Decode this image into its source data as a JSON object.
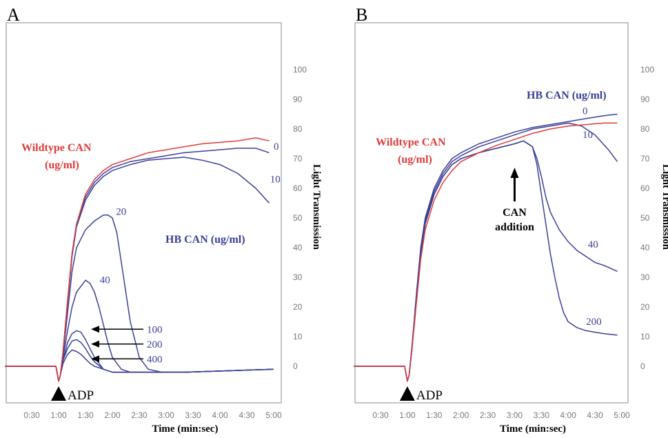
{
  "chart_data": [
    {
      "panel": "A",
      "type": "line",
      "xlabel": "Time (min:sec)",
      "ylabel": "Light Transmission",
      "x_ticks": [
        "0:30",
        "1:00",
        "1:30",
        "2:00",
        "2:30",
        "3:00",
        "3:30",
        "4:00",
        "4:30",
        "5:00"
      ],
      "x_tick_seconds": [
        30,
        60,
        90,
        120,
        150,
        180,
        210,
        240,
        270,
        300
      ],
      "y_ticks": [
        0,
        10,
        20,
        30,
        40,
        50,
        60,
        70,
        80,
        90,
        100
      ],
      "xlim": [
        0,
        310
      ],
      "ylim": [
        -12,
        112
      ],
      "adp_marker": {
        "label": "ADP",
        "x": 60
      },
      "annotations": {
        "wildtype": [
          "Wildtype CAN",
          "(ug/ml)"
        ],
        "hb": "HB CAN (ug/ml)"
      },
      "series": [
        {
          "label": "0",
          "group": "HB",
          "color": "#3a3f96",
          "x": [
            0,
            57,
            60,
            62,
            65,
            70,
            75,
            80,
            90,
            100,
            110,
            120,
            140,
            160,
            180,
            200,
            220,
            240,
            260,
            280,
            295
          ],
          "y": [
            0,
            0,
            -5,
            -3,
            5,
            22,
            38,
            48,
            57,
            62,
            65,
            67,
            69,
            70,
            71,
            72,
            72.5,
            73,
            73.5,
            73.5,
            72
          ]
        },
        {
          "label": "10",
          "group": "HB",
          "color": "#3a3f96",
          "x": [
            0,
            57,
            60,
            62,
            65,
            70,
            75,
            80,
            90,
            100,
            110,
            120,
            140,
            160,
            180,
            200,
            220,
            240,
            260,
            280,
            295
          ],
          "y": [
            0,
            0,
            -5,
            -3,
            5,
            21,
            37,
            47,
            56,
            61,
            64,
            66,
            68,
            69.5,
            70,
            70.5,
            69.5,
            68,
            65,
            60,
            55
          ]
        },
        {
          "label": "20",
          "group": "HB",
          "color": "#3a3f96",
          "x": [
            0,
            57,
            60,
            62,
            65,
            70,
            75,
            80,
            90,
            100,
            110,
            115,
            120,
            125,
            130,
            140,
            150,
            160,
            175,
            200,
            250,
            300
          ],
          "y": [
            0,
            0,
            -5,
            -3,
            4,
            18,
            32,
            40,
            46,
            49,
            51,
            51,
            50,
            45,
            35,
            15,
            3,
            -1,
            -2,
            -2,
            -1.5,
            -1
          ]
        },
        {
          "label": "40",
          "group": "HB",
          "color": "#3a3f96",
          "x": [
            0,
            57,
            60,
            62,
            65,
            70,
            75,
            80,
            85,
            90,
            95,
            100,
            105,
            110,
            115,
            120,
            130,
            140,
            160,
            200,
            250,
            300
          ],
          "y": [
            0,
            0,
            -5,
            -3,
            3,
            12,
            20,
            25,
            27,
            29,
            28,
            25,
            20,
            14,
            8,
            3,
            -1,
            -2,
            -2,
            -2,
            -1.5,
            -1
          ]
        },
        {
          "label": "100",
          "group": "HB",
          "color": "#3a3f96",
          "x": [
            0,
            57,
            60,
            62,
            65,
            70,
            75,
            80,
            85,
            90,
            95,
            100,
            110,
            120,
            140,
            160,
            200,
            250,
            300
          ],
          "y": [
            0,
            0,
            -5,
            -3,
            2,
            8,
            11,
            12,
            11.5,
            9,
            6,
            3,
            -1,
            -2,
            -2,
            -2,
            -2,
            -1.5,
            -1
          ]
        },
        {
          "label": "200",
          "group": "HB",
          "color": "#3a3f96",
          "x": [
            0,
            57,
            60,
            62,
            65,
            70,
            75,
            80,
            85,
            90,
            95,
            100,
            110,
            120,
            140,
            160,
            200,
            250,
            300
          ],
          "y": [
            0,
            0,
            -5,
            -3,
            2,
            6,
            8.5,
            9,
            8,
            6,
            3.5,
            1.5,
            -1,
            -2,
            -2,
            -2,
            -2,
            -1.5,
            -1
          ]
        },
        {
          "label": "400",
          "group": "HB",
          "color": "#3a3f96",
          "x": [
            0,
            57,
            60,
            62,
            65,
            70,
            75,
            80,
            85,
            90,
            95,
            100,
            110,
            120,
            140,
            160,
            200,
            250,
            300
          ],
          "y": [
            0,
            0,
            -5,
            -3,
            1,
            4,
            5.5,
            5,
            4,
            2.5,
            1,
            0,
            -1,
            -2,
            -2,
            -2,
            -2,
            -1.5,
            -1
          ]
        },
        {
          "label": "Wildtype",
          "group": "WT",
          "color": "#e03a3a",
          "x": [
            0,
            57,
            60,
            62,
            65,
            70,
            75,
            80,
            90,
            100,
            110,
            120,
            140,
            160,
            180,
            200,
            220,
            240,
            260,
            280,
            295
          ],
          "y": [
            0,
            0,
            -5,
            -3,
            5,
            22,
            38,
            48,
            58,
            63,
            66,
            68,
            70,
            72,
            73,
            74,
            75,
            75.5,
            76,
            77,
            76
          ]
        }
      ],
      "end_labels": [
        {
          "text": "0",
          "x": 300,
          "y": 73
        },
        {
          "text": "10",
          "x": 296,
          "y": 62
        },
        {
          "text": "20",
          "x": 124,
          "y": 51
        },
        {
          "text": "40",
          "x": 106,
          "y": 28
        }
      ],
      "arrow_labels": [
        {
          "text": "100",
          "y": 12.5
        },
        {
          "text": "200",
          "y": 7.5
        },
        {
          "text": "400",
          "y": 2.5
        }
      ]
    },
    {
      "panel": "B",
      "type": "line",
      "xlabel": "Time (min:sec)",
      "ylabel": "Light Transmission",
      "x_ticks": [
        "0:30",
        "1:00",
        "1:30",
        "2:00",
        "2:30",
        "3:00",
        "3:30",
        "4:00",
        "4:30",
        "5:00"
      ],
      "x_tick_seconds": [
        30,
        60,
        90,
        120,
        150,
        180,
        210,
        240,
        270,
        300
      ],
      "y_ticks": [
        0,
        10,
        20,
        30,
        40,
        50,
        60,
        70,
        80,
        90,
        100
      ],
      "xlim": [
        0,
        310
      ],
      "ylim": [
        -12,
        112
      ],
      "adp_marker": {
        "label": "ADP",
        "x": 60
      },
      "annotations": {
        "wildtype": [
          "Wildtype CAN",
          "(ug/ml)"
        ],
        "hb": "HB CAN (ug/ml)",
        "can_addition": [
          "CAN",
          "addition"
        ]
      },
      "can_addition_x": 180,
      "series": [
        {
          "label": "0",
          "group": "HB",
          "color": "#3a3f96",
          "x": [
            0,
            57,
            60,
            62,
            65,
            70,
            75,
            80,
            90,
            100,
            110,
            120,
            140,
            160,
            180,
            200,
            220,
            240,
            260,
            280,
            295
          ],
          "y": [
            0,
            0,
            -5,
            -3,
            6,
            24,
            40,
            50,
            60,
            66,
            70,
            72,
            75,
            77,
            79,
            80.5,
            81.5,
            82.5,
            83.5,
            84.5,
            85
          ]
        },
        {
          "label": "10",
          "group": "HB",
          "color": "#3a3f96",
          "x": [
            0,
            57,
            60,
            62,
            65,
            70,
            75,
            80,
            90,
            100,
            110,
            120,
            140,
            160,
            180,
            200,
            220,
            240,
            255,
            270,
            285,
            295
          ],
          "y": [
            0,
            0,
            -5,
            -3,
            6,
            23,
            39,
            49,
            59,
            65,
            69,
            71,
            74,
            76,
            78,
            80,
            81,
            82,
            81,
            78,
            73,
            69
          ]
        },
        {
          "label": "40",
          "group": "HB",
          "color": "#3a3f96",
          "x": [
            0,
            57,
            60,
            62,
            65,
            70,
            75,
            80,
            90,
            100,
            110,
            120,
            140,
            160,
            180,
            190,
            200,
            205,
            210,
            215,
            220,
            230,
            240,
            250,
            260,
            270,
            280,
            295
          ],
          "y": [
            0,
            0,
            -5,
            -3,
            6,
            22,
            38,
            48,
            58,
            64,
            68,
            70,
            72,
            73.5,
            75,
            76,
            74,
            70,
            64,
            57,
            52,
            46,
            42,
            39,
            37,
            35,
            34,
            32
          ]
        },
        {
          "label": "200",
          "group": "HB",
          "color": "#3a3f96",
          "x": [
            0,
            57,
            60,
            62,
            65,
            70,
            75,
            80,
            90,
            100,
            110,
            120,
            140,
            160,
            180,
            190,
            200,
            205,
            210,
            215,
            220,
            225,
            230,
            235,
            240,
            250,
            260,
            270,
            280,
            295
          ],
          "y": [
            0,
            0,
            -5,
            -3,
            6,
            22,
            38,
            48,
            58,
            64,
            68,
            70,
            72,
            73.5,
            75,
            76,
            74,
            68,
            58,
            48,
            38,
            30,
            23,
            18,
            15,
            13,
            12,
            11.5,
            11,
            10.5
          ]
        },
        {
          "label": "Wildtype",
          "group": "WT",
          "color": "#e03a3a",
          "x": [
            0,
            57,
            60,
            62,
            65,
            70,
            75,
            80,
            90,
            100,
            110,
            120,
            140,
            160,
            180,
            200,
            220,
            240,
            260,
            280,
            295
          ],
          "y": [
            0,
            0,
            -5,
            -3,
            5,
            21,
            36,
            46,
            56,
            62,
            66,
            69,
            72,
            74.5,
            76.5,
            78.5,
            80,
            81,
            81.5,
            82,
            82
          ]
        }
      ],
      "end_labels": [
        {
          "text": "0",
          "x": 256,
          "y": 85
        },
        {
          "text": "10",
          "x": 256,
          "y": 77
        },
        {
          "text": "40",
          "x": 262,
          "y": 40
        },
        {
          "text": "200",
          "x": 260,
          "y": 14
        }
      ]
    }
  ]
}
